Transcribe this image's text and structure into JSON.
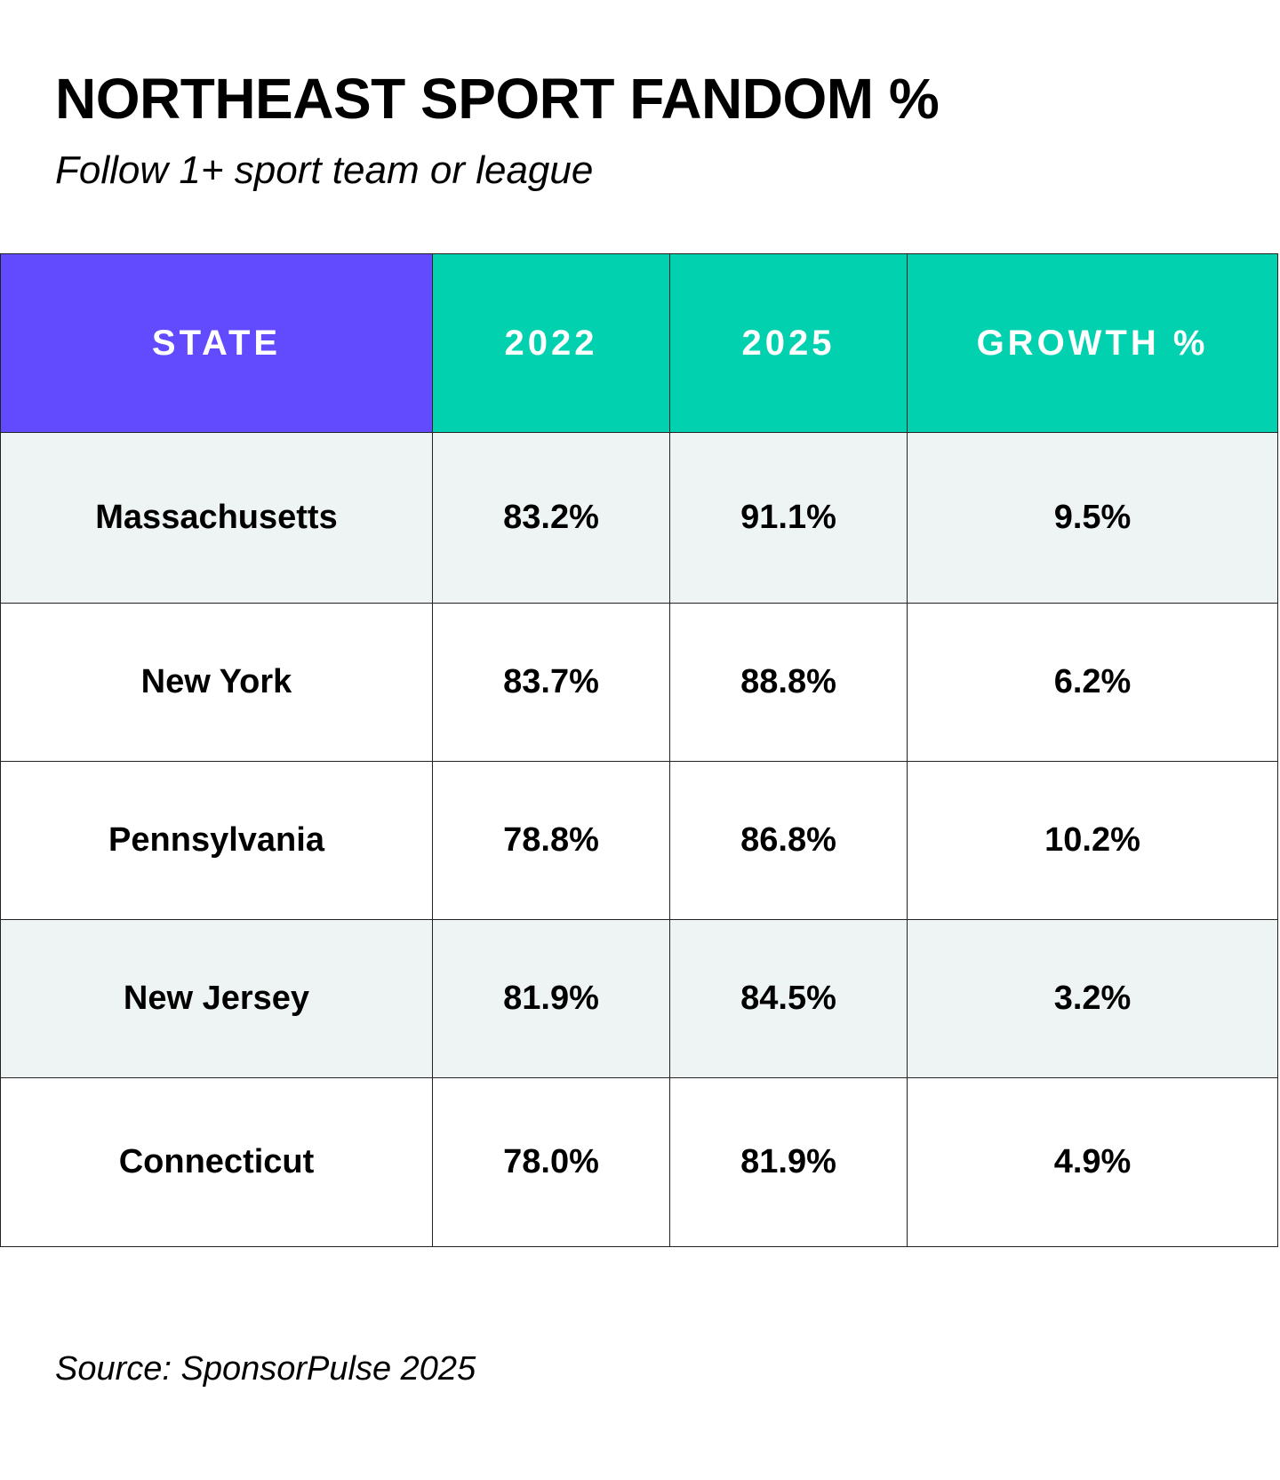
{
  "title": "NORTHEAST SPORT FANDOM %",
  "subtitle": "Follow 1+ sport team or league",
  "source": "Source: SponsorPulse 2025",
  "colors": {
    "state_header_bg": "#624bff",
    "value_header_bg": "#02d1b0",
    "shaded_row_bg": "#edf4f3",
    "plain_row_bg": "#ffffff",
    "header_text": "#ffffff",
    "body_text": "#000000"
  },
  "chart_data": {
    "type": "table",
    "title": "NORTHEAST SPORT FANDOM %",
    "subtitle": "Follow 1+ sport team or league",
    "columns": [
      "STATE",
      "2022",
      "2025",
      "GROWTH %"
    ],
    "rows": [
      {
        "state": "Massachusetts",
        "y2022": "83.2%",
        "y2025": "91.1%",
        "growth": "9.5%",
        "shaded": true
      },
      {
        "state": "New York",
        "y2022": "83.7%",
        "y2025": "88.8%",
        "growth": "6.2%",
        "shaded": false
      },
      {
        "state": "Pennsylvania",
        "y2022": "78.8%",
        "y2025": "86.8%",
        "growth": "10.2%",
        "shaded": false
      },
      {
        "state": "New Jersey",
        "y2022": "81.9%",
        "y2025": "84.5%",
        "growth": "3.2%",
        "shaded": true
      },
      {
        "state": "Connecticut",
        "y2022": "78.0%",
        "y2025": "81.9%",
        "growth": "4.9%",
        "shaded": false
      }
    ],
    "values_2022": [
      83.2,
      83.7,
      78.8,
      81.9,
      78.0
    ],
    "values_2025": [
      91.1,
      88.8,
      86.8,
      84.5,
      81.9
    ],
    "growth_pct": [
      9.5,
      6.2,
      10.2,
      3.2,
      4.9
    ],
    "source": "Source: SponsorPulse 2025"
  }
}
